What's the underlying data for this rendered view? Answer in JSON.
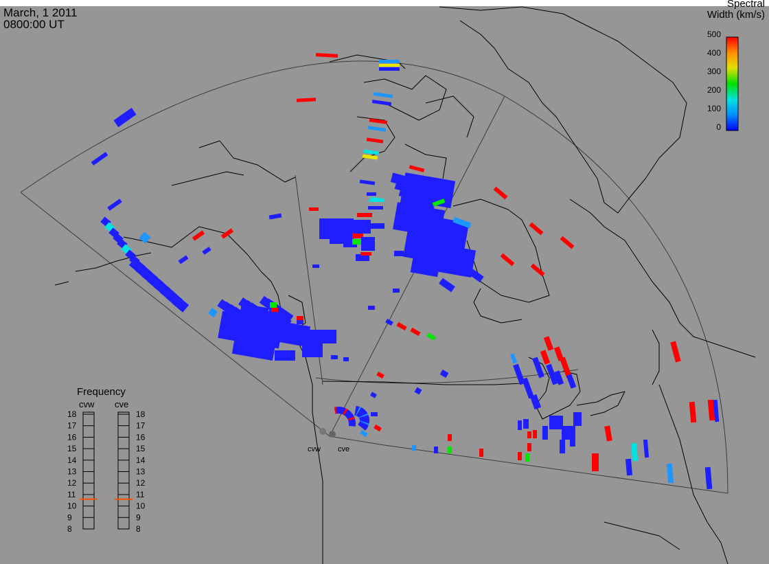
{
  "header": {
    "date": "March, 1 2011",
    "time": "0800:00 UT"
  },
  "colorbar": {
    "title_line1": "Spectral",
    "title_line2": "Width (km/s)",
    "ticks": [
      "500",
      "400",
      "300",
      "200",
      "100",
      "0"
    ],
    "range": [
      0,
      500
    ],
    "colors": [
      "#0000ff",
      "#0090ff",
      "#00e0e0",
      "#00e000",
      "#e0e000",
      "#ff9000",
      "#ff0000"
    ]
  },
  "radars": [
    {
      "code": "cvw",
      "label": "cvw"
    },
    {
      "code": "cve",
      "label": "cve"
    }
  ],
  "frequency": {
    "title": "Frequency",
    "col_left": "cvw",
    "col_right": "cve",
    "ticks": [
      "18",
      "17",
      "16",
      "15",
      "14",
      "13",
      "12",
      "11",
      "10",
      "9",
      "8"
    ],
    "cvw_mhz": 10.6,
    "cve_mhz": 10.6,
    "marker_color": "#ff5000"
  },
  "colors": {
    "background": "#969696",
    "coast": "#000000",
    "fov": "#3c3c3c",
    "red": "#ff0000",
    "blue": "#1e1eff",
    "ltblue": "#1e96ff",
    "cyan": "#00e1e1",
    "green": "#00e600",
    "yellow": "#e6e600"
  }
}
